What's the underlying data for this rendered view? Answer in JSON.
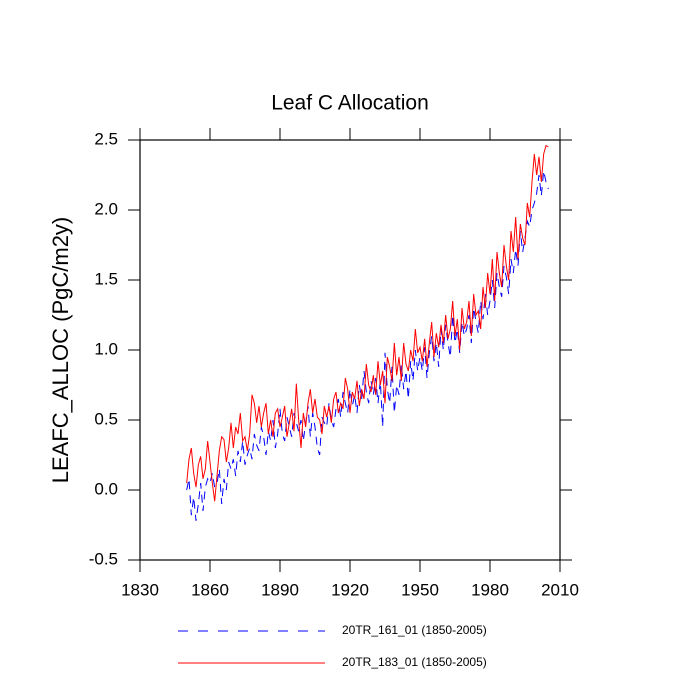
{
  "chart_data": {
    "type": "line",
    "title": "Leaf C Allocation",
    "y_label": "LEAFC_ALLOC  (PgC/m2y)",
    "x": [
      1850,
      1851,
      1852,
      1853,
      1854,
      1855,
      1856,
      1857,
      1858,
      1859,
      1860,
      1861,
      1862,
      1863,
      1864,
      1865,
      1866,
      1867,
      1868,
      1869,
      1870,
      1871,
      1872,
      1873,
      1874,
      1875,
      1876,
      1877,
      1878,
      1879,
      1880,
      1881,
      1882,
      1883,
      1884,
      1885,
      1886,
      1887,
      1888,
      1889,
      1890,
      1891,
      1892,
      1893,
      1894,
      1895,
      1896,
      1897,
      1898,
      1899,
      1900,
      1901,
      1902,
      1903,
      1904,
      1905,
      1906,
      1907,
      1908,
      1909,
      1910,
      1911,
      1912,
      1913,
      1914,
      1915,
      1916,
      1917,
      1918,
      1919,
      1920,
      1921,
      1922,
      1923,
      1924,
      1925,
      1926,
      1927,
      1928,
      1929,
      1930,
      1931,
      1932,
      1933,
      1934,
      1935,
      1936,
      1937,
      1938,
      1939,
      1940,
      1941,
      1942,
      1943,
      1944,
      1945,
      1946,
      1947,
      1948,
      1949,
      1950,
      1951,
      1952,
      1953,
      1954,
      1955,
      1956,
      1957,
      1958,
      1959,
      1960,
      1961,
      1962,
      1963,
      1964,
      1965,
      1966,
      1967,
      1968,
      1969,
      1970,
      1971,
      1972,
      1973,
      1974,
      1975,
      1976,
      1977,
      1978,
      1979,
      1980,
      1981,
      1982,
      1983,
      1984,
      1985,
      1986,
      1987,
      1988,
      1989,
      1990,
      1991,
      1992,
      1993,
      1994,
      1995,
      1996,
      1997,
      1998,
      1999,
      2000,
      2001,
      2002,
      2003,
      2004,
      2005
    ],
    "series": [
      {
        "name": "20TR_161_01 (1850-2005)",
        "color": "#0000ff",
        "line_style": "dashed",
        "values": [
          0.0,
          0.08,
          -0.18,
          -0.05,
          -0.22,
          -0.1,
          0.05,
          -0.15,
          0.02,
          0.08,
          0.05,
          0.12,
          0.02,
          0.05,
          0.15,
          -0.1,
          0.08,
          0.0,
          0.2,
          0.15,
          0.22,
          0.1,
          0.28,
          0.2,
          0.35,
          0.18,
          0.25,
          0.3,
          0.22,
          0.4,
          0.32,
          0.28,
          0.45,
          0.38,
          0.25,
          0.42,
          0.35,
          0.5,
          0.3,
          0.4,
          0.58,
          0.4,
          0.35,
          0.52,
          0.45,
          0.38,
          0.55,
          0.48,
          0.42,
          0.5,
          0.35,
          0.48,
          0.6,
          0.38,
          0.55,
          0.45,
          0.3,
          0.25,
          0.52,
          0.48,
          0.45,
          0.62,
          0.5,
          0.45,
          0.58,
          0.65,
          0.52,
          0.7,
          0.62,
          0.55,
          0.72,
          0.6,
          0.68,
          0.55,
          0.75,
          0.65,
          0.85,
          0.7,
          0.62,
          0.78,
          0.68,
          0.8,
          0.62,
          0.78,
          0.45,
          0.98,
          0.72,
          0.62,
          0.88,
          0.55,
          0.75,
          0.68,
          0.9,
          0.72,
          0.85,
          0.65,
          0.92,
          0.78,
          1.0,
          0.85,
          0.95,
          0.85,
          1.02,
          0.8,
          0.98,
          1.1,
          0.92,
          1.05,
          0.88,
          1.15,
          1.0,
          1.18,
          1.05,
          0.95,
          1.25,
          1.05,
          1.15,
          0.98,
          1.2,
          1.1,
          1.15,
          1.25,
          1.05,
          1.3,
          1.2,
          1.12,
          1.35,
          1.22,
          1.4,
          1.25,
          1.35,
          1.5,
          1.3,
          1.55,
          1.45,
          1.38,
          1.6,
          1.52,
          1.4,
          1.65,
          1.55,
          1.72,
          1.6,
          1.85,
          1.7,
          1.8,
          1.92,
          1.88,
          2.0,
          2.05,
          2.12,
          2.25,
          2.1,
          2.28,
          2.2,
          2.15
        ]
      },
      {
        "name": "20TR_183_01 (1850-2005)",
        "color": "#ff0000",
        "line_style": "solid",
        "values": [
          0.05,
          0.22,
          0.3,
          0.12,
          0.02,
          0.18,
          0.24,
          0.08,
          0.15,
          0.35,
          0.2,
          0.05,
          -0.08,
          0.1,
          0.28,
          0.38,
          0.36,
          0.2,
          0.3,
          0.48,
          0.3,
          0.45,
          0.4,
          0.55,
          0.35,
          0.38,
          0.28,
          0.4,
          0.68,
          0.62,
          0.48,
          0.6,
          0.45,
          0.55,
          0.62,
          0.4,
          0.5,
          0.38,
          0.55,
          0.58,
          0.45,
          0.52,
          0.6,
          0.38,
          0.48,
          0.58,
          0.42,
          0.76,
          0.5,
          0.3,
          0.55,
          0.45,
          0.62,
          0.72,
          0.55,
          0.65,
          0.52,
          0.5,
          0.4,
          0.6,
          0.52,
          0.6,
          0.48,
          0.65,
          0.7,
          0.55,
          0.62,
          0.58,
          0.8,
          0.72,
          0.55,
          0.7,
          0.65,
          0.78,
          0.6,
          0.72,
          0.65,
          0.9,
          0.75,
          0.7,
          0.82,
          0.68,
          0.92,
          0.75,
          0.85,
          0.62,
          0.95,
          0.88,
          0.78,
          1.05,
          0.82,
          0.95,
          0.78,
          1.05,
          0.9,
          0.85,
          1.0,
          0.92,
          1.15,
          0.98,
          1.02,
          0.92,
          1.08,
          0.88,
          1.05,
          1.2,
          0.95,
          1.12,
          1.02,
          1.18,
          1.05,
          1.25,
          1.08,
          1.15,
          1.35,
          1.1,
          1.22,
          1.0,
          1.3,
          1.15,
          1.2,
          1.35,
          1.1,
          1.4,
          1.25,
          1.28,
          1.15,
          1.45,
          1.3,
          1.55,
          1.4,
          1.65,
          1.35,
          1.7,
          1.55,
          1.45,
          1.75,
          1.6,
          1.5,
          1.85,
          1.7,
          1.95,
          1.65,
          1.9,
          1.8,
          1.75,
          2.05,
          1.95,
          2.2,
          2.4,
          2.25,
          2.38,
          2.2,
          2.4,
          2.46,
          2.45
        ]
      }
    ],
    "xlim": [
      1830,
      2010
    ],
    "xticks": [
      1830,
      1860,
      1890,
      1920,
      1950,
      1980,
      2010
    ],
    "ylim": [
      -0.5,
      2.5
    ],
    "yticks": [
      -0.5,
      {
        "value": 0,
        "label": "0.0"
      },
      0.5,
      {
        "value": 1,
        "label": "1.0"
      },
      1.5,
      {
        "value": 2,
        "label": "2.0"
      },
      2.5
    ]
  }
}
